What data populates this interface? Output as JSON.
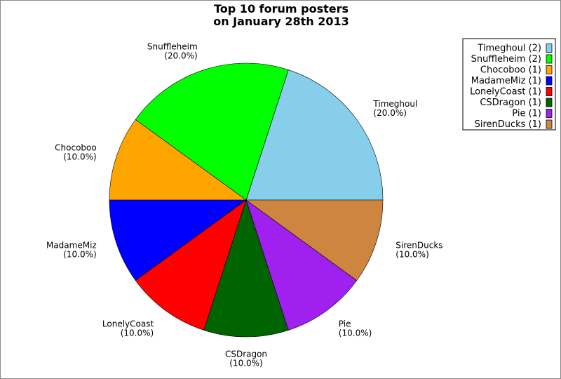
{
  "chart_data": {
    "type": "pie",
    "title": [
      "Top 10 forum posters",
      "on January 28th 2013"
    ],
    "legend_position": "top-right",
    "slices": [
      {
        "label": "Timeghoul",
        "count": 2,
        "percent": "20.0%",
        "color": "#87ceeb"
      },
      {
        "label": "Snuffleheim",
        "count": 2,
        "percent": "20.0%",
        "color": "#00ff00"
      },
      {
        "label": "Chocoboo",
        "count": 1,
        "percent": "10.0%",
        "color": "#ffa500"
      },
      {
        "label": "MadameMiz",
        "count": 1,
        "percent": "10.0%",
        "color": "#0000ff"
      },
      {
        "label": "LonelyCoast",
        "count": 1,
        "percent": "10.0%",
        "color": "#ff0000"
      },
      {
        "label": "CSDragon",
        "count": 1,
        "percent": "10.0%",
        "color": "#006400"
      },
      {
        "label": "Pie",
        "count": 1,
        "percent": "10.0%",
        "color": "#a020f0"
      },
      {
        "label": "SirenDucks",
        "count": 1,
        "percent": "10.0%",
        "color": "#cd853f"
      }
    ]
  }
}
